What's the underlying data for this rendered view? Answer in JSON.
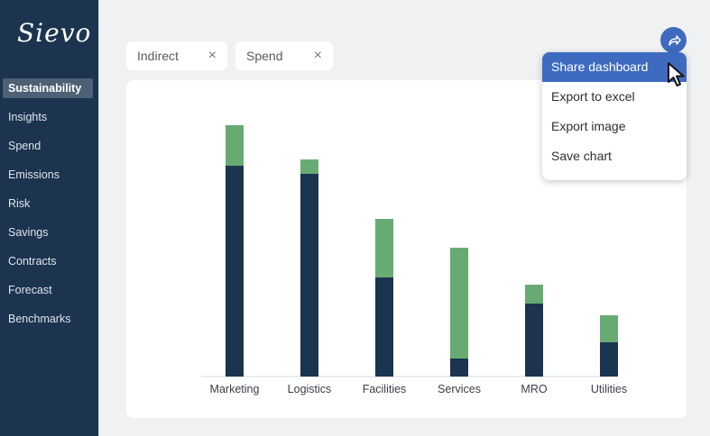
{
  "app": {
    "logo": "Sievo"
  },
  "sidebar": {
    "items": [
      {
        "label": "Sustainability",
        "active": true
      },
      {
        "label": "Insights"
      },
      {
        "label": "Spend"
      },
      {
        "label": "Emissions"
      },
      {
        "label": "Risk"
      },
      {
        "label": "Savings"
      },
      {
        "label": "Contracts"
      },
      {
        "label": "Forecast"
      },
      {
        "label": "Benchmarks"
      }
    ]
  },
  "filters": [
    {
      "label": "Indirect",
      "remove": "×"
    },
    {
      "label": "Spend",
      "remove": "×"
    }
  ],
  "share_menu": {
    "items": [
      "Share dashboard",
      "Export to excel",
      "Export image",
      "Save chart"
    ],
    "hovered": "Share dashboard"
  },
  "colors": {
    "sidebar": "#1c344f",
    "bar_base": "#1b3450",
    "bar_top": "#67ab72",
    "accent": "#3e6bbf"
  },
  "chart_data": {
    "type": "bar",
    "stacked": true,
    "categories": [
      "Marketing",
      "Logistics",
      "Facilities",
      "Services",
      "MRO",
      "Utilities"
    ],
    "series": [
      {
        "color": "#1b3450",
        "values": [
          234,
          225,
          110,
          20,
          81,
          38
        ]
      },
      {
        "color": "#67ab72",
        "values": [
          45,
          16,
          65,
          123,
          21,
          30
        ]
      }
    ],
    "ylim": [
      0,
      300
    ],
    "grid": false,
    "legend": "none"
  }
}
